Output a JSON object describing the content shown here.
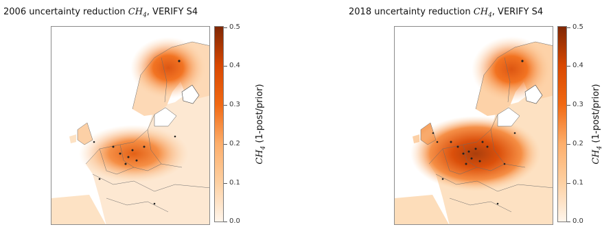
{
  "panels": [
    {
      "title_prefix": "2006 uncertainty reduction ",
      "title_species": "CH",
      "title_species_sub": "4",
      "title_suffix": ", VERIFY S4",
      "colorbar": {
        "species": "CH",
        "species_sub": "4",
        "label_text": " (1-post/prior)",
        "ticks": [
          "0.0",
          "0.1",
          "0.2",
          "0.3",
          "0.4",
          "0.5"
        ]
      }
    },
    {
      "title_prefix": "2018 uncertainty reduction ",
      "title_species": "CH",
      "title_species_sub": "4",
      "title_suffix": ", VERIFY S4",
      "colorbar": {
        "species": "CH",
        "species_sub": "4",
        "label_text": " (1-post/prior)",
        "ticks": [
          "0.0",
          "0.1",
          "0.2",
          "0.3",
          "0.4",
          "0.5"
        ]
      }
    }
  ],
  "colormap": {
    "min": 0.0,
    "max": 0.5,
    "stops": [
      "#fff5eb",
      "#fdd0a2",
      "#fdae6b",
      "#f16913",
      "#d94801",
      "#7f2704"
    ]
  }
}
